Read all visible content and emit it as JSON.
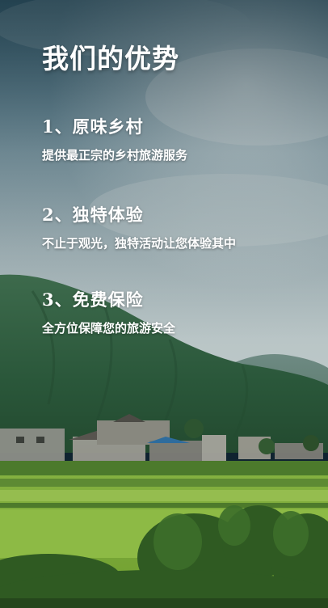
{
  "headline": "我们的优势",
  "features": [
    {
      "title": "1、原味乡村",
      "desc": "提供最正宗的乡村旅游服务"
    },
    {
      "title": "2、独特体验",
      "desc": "不止于观光，独特活动让您体验其中"
    },
    {
      "title": "3、免费保险",
      "desc": "全方位保障您的旅游安全"
    }
  ],
  "colors": {
    "text": "#ffffff",
    "sky_top": "#5f7d8c",
    "sky_mid": "#a9b8bd",
    "mountain": "#2f5e3d",
    "field": "#7fae3c"
  }
}
